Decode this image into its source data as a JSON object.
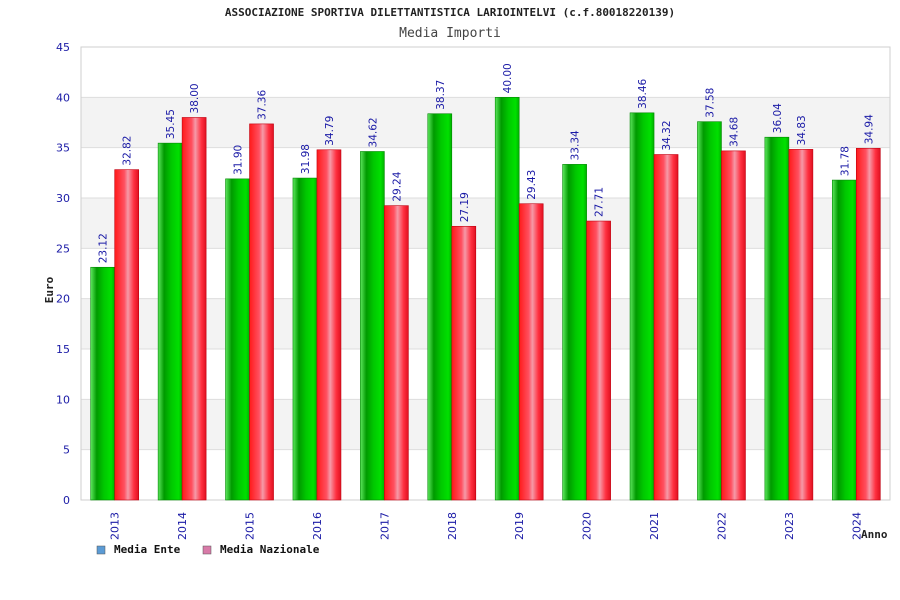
{
  "chart_data": {
    "type": "bar",
    "title": "ASSOCIAZIONE SPORTIVA DILETTANTISTICA LARIOINTELVI (c.f.80018220139)",
    "subtitle": "Media Importi",
    "xlabel": "Anno",
    "ylabel": "Euro",
    "ylim": [
      0,
      45
    ],
    "yticks": [
      0,
      5,
      10,
      15,
      20,
      25,
      30,
      35,
      40,
      45
    ],
    "categories": [
      "2013",
      "2014",
      "2015",
      "2016",
      "2017",
      "2018",
      "2019",
      "2020",
      "2021",
      "2022",
      "2023",
      "2024"
    ],
    "series": [
      {
        "name": "Media Ente",
        "color": "#00b000",
        "legend_color": "#5b9bd5",
        "values": [
          23.12,
          35.45,
          31.9,
          31.98,
          34.62,
          38.37,
          40.0,
          33.34,
          38.46,
          37.58,
          36.04,
          31.78
        ],
        "labels": [
          "23.12",
          "35.45",
          "31.90",
          "31.98",
          "34.62",
          "38.37",
          "40.00",
          "33.34",
          "38.46",
          "37.58",
          "36.04",
          "31.78"
        ]
      },
      {
        "name": "Media Nazionale",
        "color": "#f01020",
        "legend_color": "#d87aa8",
        "values": [
          32.82,
          38.0,
          37.36,
          34.79,
          29.24,
          27.19,
          29.43,
          27.71,
          34.32,
          34.68,
          34.83,
          34.94
        ],
        "labels": [
          "32.82",
          "38.00",
          "37.36",
          "34.79",
          "29.24",
          "27.19",
          "29.43",
          "27.71",
          "34.32",
          "34.68",
          "34.83",
          "34.94"
        ]
      }
    ],
    "grid": true,
    "legend_position": "bottom-left"
  }
}
